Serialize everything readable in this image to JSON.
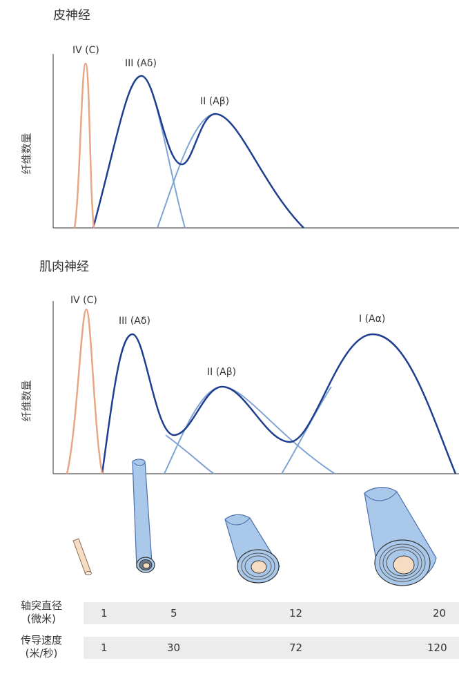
{
  "skin": {
    "title": "皮神经",
    "ylabel": "纤维数量",
    "labels": {
      "c": "IV (C)",
      "adelta": "III (Aδ)",
      "abeta": "II (Aβ)"
    }
  },
  "muscle": {
    "title": "肌肉神经",
    "ylabel": "纤维数量",
    "labels": {
      "c": "IV (C)",
      "adelta": "III (Aδ)",
      "abeta": "II (Aβ)",
      "aalpha": "I (Aα)"
    }
  },
  "table": {
    "diameter": {
      "label_line1": "轴突直径",
      "label_line2": "(微米)",
      "values": [
        "1",
        "5",
        "12",
        "20"
      ]
    },
    "velocity": {
      "label_line1": "传导速度",
      "label_line2": "(米/秒)",
      "values": [
        "1",
        "30",
        "72",
        "120"
      ]
    }
  },
  "colors": {
    "c_fiber": "#e8a684",
    "envelope": "#1e3f8f",
    "component": "#7fa3d4",
    "myelin": "#a9c8ea",
    "axon": "#f6dcc3",
    "band": "#ececec"
  }
}
